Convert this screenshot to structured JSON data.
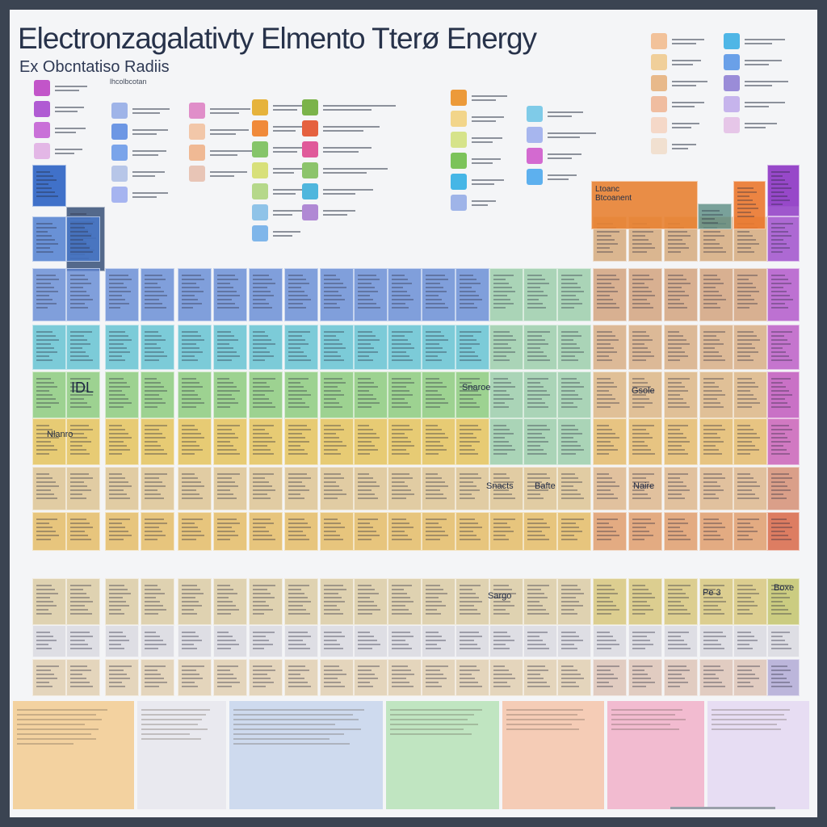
{
  "poster": {
    "title": "Electronzagalativty Elmento Tterø Energy",
    "subtitle": "Ex  Obcntatiso Radiis",
    "legend_header": "lhcolbcotan"
  },
  "cell_labels": {
    "block_label": "Ltoanc\nBtcoanent",
    "idl": "IDL",
    "cell_a": "Snaroe",
    "cell_b": "Gsole",
    "cell_c": "Nlanro",
    "cell_d": "Snacts",
    "cell_e": "Bafte",
    "cell_f": "Naire",
    "cell_g": "Sargo",
    "cell_h": "Pe 3",
    "cell_i": "Boxe"
  },
  "colors": {
    "frame": "#3b4452",
    "background": "#f4f5f7",
    "title": "#27324a",
    "blue": "#4f7fd0",
    "cyan": "#46b6d6",
    "teal": "#4cc3b5",
    "green": "#7cc35a",
    "yellow": "#e8c24a",
    "orange": "#e58a3a",
    "tan": "#d7b08a",
    "purple": "#9a4fd0",
    "magenta": "#c255c9",
    "pink": "#e98fb4"
  },
  "legend_icons": [
    "swatch-icon"
  ]
}
